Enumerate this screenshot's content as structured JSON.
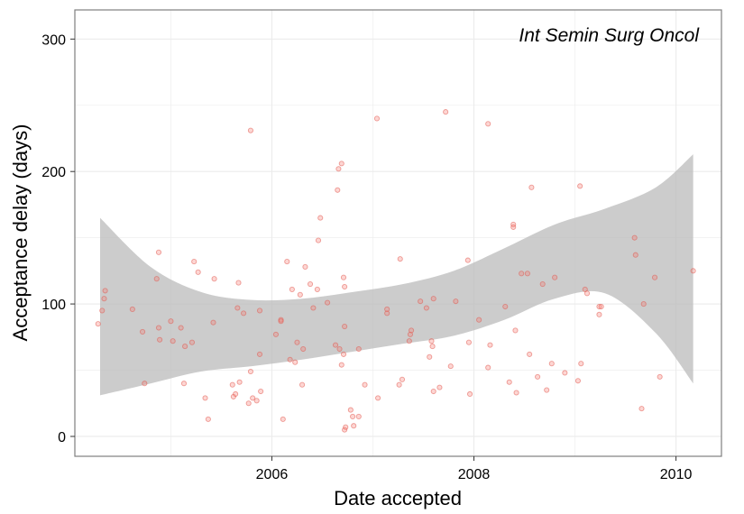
{
  "chart_data": {
    "type": "scatter",
    "xlabel": "Date accepted",
    "ylabel": "Acceptance delay (days)",
    "annotation": "Int Semin Surg Oncol",
    "xlim": [
      2004.05,
      2010.45
    ],
    "ylim": [
      -15,
      322
    ],
    "x_ticks": [
      {
        "value": 2006,
        "label": "2006"
      },
      {
        "value": 2008,
        "label": "2008"
      },
      {
        "value": 2010,
        "label": "2010"
      }
    ],
    "y_ticks": [
      {
        "value": 0,
        "label": "0"
      },
      {
        "value": 100,
        "label": "100"
      },
      {
        "value": 200,
        "label": "200"
      },
      {
        "value": 300,
        "label": "300"
      }
    ],
    "grid": true,
    "colors": {
      "points_fill": "#f8766d",
      "points_stroke": "#e0564c",
      "band_fill": "#bbbbbb",
      "grid": "#ebebeb",
      "panel_border": "#7f7f7f"
    },
    "smooth_band": {
      "x": [
        2004.3,
        2004.8,
        2005.3,
        2005.8,
        2006.3,
        2006.8,
        2007.3,
        2007.8,
        2008.3,
        2008.8,
        2009.3,
        2009.8,
        2010.17
      ],
      "lower": [
        31,
        40,
        49,
        53,
        58,
        64,
        70,
        76,
        88,
        104,
        108,
        78,
        40
      ],
      "upper": [
        165,
        128,
        109,
        103,
        104,
        109,
        115,
        125,
        142,
        160,
        172,
        188,
        213
      ],
      "fit": [
        98,
        84,
        79,
        78,
        81,
        86,
        93,
        101,
        115,
        132,
        140,
        133,
        126
      ]
    },
    "series": [
      {
        "points": [
          [
            2004.28,
            85
          ],
          [
            2004.32,
            95
          ],
          [
            2004.34,
            104
          ],
          [
            2004.35,
            110
          ],
          [
            2004.62,
            96
          ],
          [
            2004.72,
            79
          ],
          [
            2004.74,
            40
          ],
          [
            2004.86,
            119
          ],
          [
            2004.88,
            139
          ],
          [
            2004.88,
            82
          ],
          [
            2004.89,
            73
          ],
          [
            2005.0,
            87
          ],
          [
            2005.02,
            72
          ],
          [
            2005.1,
            82
          ],
          [
            2005.14,
            68
          ],
          [
            2005.13,
            40
          ],
          [
            2005.21,
            71
          ],
          [
            2005.23,
            132
          ],
          [
            2005.27,
            124
          ],
          [
            2005.34,
            29
          ],
          [
            2005.37,
            13
          ],
          [
            2005.42,
            86
          ],
          [
            2005.43,
            119
          ],
          [
            2005.61,
            39
          ],
          [
            2005.62,
            30
          ],
          [
            2005.64,
            32
          ],
          [
            2005.66,
            97
          ],
          [
            2005.67,
            116
          ],
          [
            2005.68,
            41
          ],
          [
            2005.72,
            93
          ],
          [
            2005.77,
            25
          ],
          [
            2005.79,
            231
          ],
          [
            2005.79,
            49
          ],
          [
            2005.81,
            29
          ],
          [
            2005.85,
            27
          ],
          [
            2005.88,
            62
          ],
          [
            2005.88,
            95
          ],
          [
            2005.89,
            34
          ],
          [
            2006.04,
            77
          ],
          [
            2006.09,
            88
          ],
          [
            2006.09,
            87
          ],
          [
            2006.11,
            13
          ],
          [
            2006.15,
            132
          ],
          [
            2006.18,
            58
          ],
          [
            2006.2,
            111
          ],
          [
            2006.23,
            56
          ],
          [
            2006.25,
            71
          ],
          [
            2006.28,
            107
          ],
          [
            2006.3,
            39
          ],
          [
            2006.31,
            66
          ],
          [
            2006.33,
            128
          ],
          [
            2006.38,
            115
          ],
          [
            2006.41,
            97
          ],
          [
            2006.45,
            111
          ],
          [
            2006.46,
            148
          ],
          [
            2006.48,
            165
          ],
          [
            2006.55,
            101
          ],
          [
            2006.63,
            69
          ],
          [
            2006.65,
            186
          ],
          [
            2006.66,
            202
          ],
          [
            2006.67,
            66
          ],
          [
            2006.69,
            206
          ],
          [
            2006.69,
            54
          ],
          [
            2006.71,
            120
          ],
          [
            2006.71,
            62
          ],
          [
            2006.72,
            113
          ],
          [
            2006.72,
            83
          ],
          [
            2006.72,
            5
          ],
          [
            2006.73,
            7
          ],
          [
            2006.78,
            20
          ],
          [
            2006.8,
            15
          ],
          [
            2006.81,
            8
          ],
          [
            2006.86,
            15
          ],
          [
            2006.86,
            66
          ],
          [
            2006.92,
            39
          ],
          [
            2007.04,
            240
          ],
          [
            2007.05,
            29
          ],
          [
            2007.14,
            96
          ],
          [
            2007.14,
            93
          ],
          [
            2007.26,
            39
          ],
          [
            2007.27,
            134
          ],
          [
            2007.29,
            43
          ],
          [
            2007.36,
            72
          ],
          [
            2007.37,
            77
          ],
          [
            2007.38,
            80
          ],
          [
            2007.47,
            102
          ],
          [
            2007.53,
            97
          ],
          [
            2007.56,
            60
          ],
          [
            2007.58,
            72
          ],
          [
            2007.59,
            68
          ],
          [
            2007.6,
            104
          ],
          [
            2007.6,
            34
          ],
          [
            2007.66,
            37
          ],
          [
            2007.72,
            245
          ],
          [
            2007.77,
            53
          ],
          [
            2007.82,
            102
          ],
          [
            2007.94,
            133
          ],
          [
            2007.95,
            71
          ],
          [
            2007.96,
            32
          ],
          [
            2008.05,
            88
          ],
          [
            2008.14,
            236
          ],
          [
            2008.14,
            52
          ],
          [
            2008.16,
            69
          ],
          [
            2008.31,
            98
          ],
          [
            2008.35,
            41
          ],
          [
            2008.39,
            160
          ],
          [
            2008.39,
            158
          ],
          [
            2008.41,
            80
          ],
          [
            2008.42,
            33
          ],
          [
            2008.47,
            123
          ],
          [
            2008.53,
            123
          ],
          [
            2008.55,
            62
          ],
          [
            2008.57,
            188
          ],
          [
            2008.63,
            45
          ],
          [
            2008.68,
            115
          ],
          [
            2008.72,
            35
          ],
          [
            2008.77,
            55
          ],
          [
            2008.8,
            120
          ],
          [
            2008.9,
            48
          ],
          [
            2009.03,
            42
          ],
          [
            2009.05,
            189
          ],
          [
            2009.06,
            55
          ],
          [
            2009.1,
            111
          ],
          [
            2009.12,
            108
          ],
          [
            2009.24,
            98
          ],
          [
            2009.24,
            92
          ],
          [
            2009.26,
            98
          ],
          [
            2009.59,
            150
          ],
          [
            2009.6,
            137
          ],
          [
            2009.66,
            21
          ],
          [
            2009.68,
            100
          ],
          [
            2009.79,
            120
          ],
          [
            2009.84,
            45
          ],
          [
            2010.17,
            125
          ]
        ]
      }
    ]
  }
}
